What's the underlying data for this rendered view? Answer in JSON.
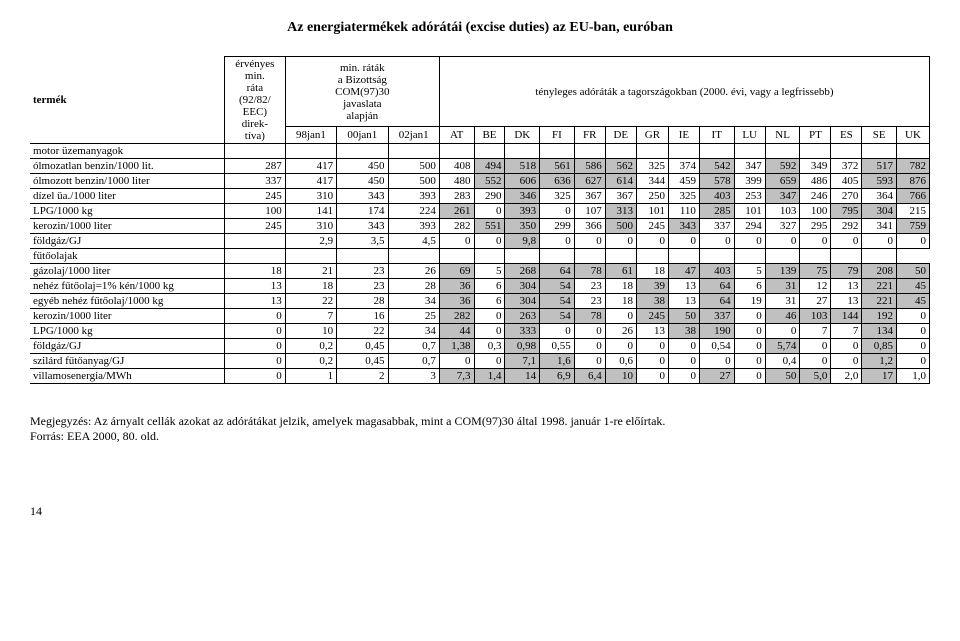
{
  "title": "Az energiatermékek adórátái (excise duties) az EU-ban, euróban",
  "header": {
    "col_product": "termék",
    "col_rate": "érvényes\nmin.\nráta\n(92/82/\nEEC)\ndirek-\ntíva)",
    "col_proposal": "min. ráták\na Bizottság\nCOM(97)30\njavaslata\nalapján",
    "col_actual": "tényleges adóráták a tagországokban (2000. évi, vagy a legfrissebb)",
    "dates": [
      "98jan1",
      "00jan1",
      "02jan1"
    ],
    "countries": [
      "AT",
      "BE",
      "DK",
      "FI",
      "FR",
      "DE",
      "GR",
      "IE",
      "IT",
      "LU",
      "NL",
      "PT",
      "ES",
      "SE",
      "UK"
    ]
  },
  "section_fuel": "motor üzemanyagok",
  "section_heating": "fűtőolajak",
  "rows_fuel": [
    {
      "label": "ólmozatlan benzin/1000 lit.",
      "rate": "287",
      "p": [
        "417",
        "450",
        "500"
      ],
      "v": [
        "408",
        "494",
        "518",
        "561",
        "586",
        "562",
        "325",
        "374",
        "542",
        "347",
        "592",
        "349",
        "372",
        "517",
        "782"
      ],
      "s": [
        0,
        1,
        1,
        1,
        1,
        1,
        0,
        0,
        1,
        0,
        1,
        0,
        0,
        1,
        1
      ]
    },
    {
      "label": "ólmozott benzin/1000 liter",
      "rate": "337",
      "p": [
        "417",
        "450",
        "500"
      ],
      "v": [
        "480",
        "552",
        "606",
        "636",
        "627",
        "614",
        "344",
        "459",
        "578",
        "399",
        "659",
        "486",
        "405",
        "593",
        "876"
      ],
      "s": [
        0,
        1,
        1,
        1,
        1,
        1,
        0,
        0,
        1,
        0,
        1,
        0,
        0,
        1,
        1
      ]
    },
    {
      "label": "dízel üa./1000 liter",
      "rate": "245",
      "p": [
        "310",
        "343",
        "393"
      ],
      "v": [
        "283",
        "290",
        "346",
        "325",
        "367",
        "367",
        "250",
        "325",
        "403",
        "253",
        "347",
        "246",
        "270",
        "364",
        "766"
      ],
      "s": [
        0,
        0,
        1,
        0,
        0,
        0,
        0,
        0,
        1,
        0,
        1,
        0,
        0,
        0,
        1
      ]
    },
    {
      "label": "LPG/1000 kg",
      "rate": "100",
      "p": [
        "141",
        "174",
        "224"
      ],
      "v": [
        "261",
        "0",
        "393",
        "0",
        "107",
        "313",
        "101",
        "110",
        "285",
        "101",
        "103",
        "100",
        "795",
        "304",
        "215"
      ],
      "s": [
        1,
        0,
        1,
        0,
        0,
        1,
        0,
        0,
        1,
        0,
        0,
        0,
        1,
        1,
        0
      ]
    },
    {
      "label": "kerozin/1000 liter",
      "rate": "245",
      "p": [
        "310",
        "343",
        "393"
      ],
      "v": [
        "282",
        "551",
        "350",
        "299",
        "366",
        "500",
        "245",
        "343",
        "337",
        "294",
        "327",
        "295",
        "292",
        "341",
        "759"
      ],
      "s": [
        0,
        1,
        1,
        0,
        0,
        1,
        0,
        1,
        0,
        0,
        0,
        0,
        0,
        0,
        1
      ]
    },
    {
      "label": "földgáz/GJ",
      "rate": "",
      "p": [
        "2,9",
        "3,5",
        "4,5"
      ],
      "v": [
        "0",
        "0",
        "9,8",
        "0",
        "0",
        "0",
        "0",
        "0",
        "0",
        "0",
        "0",
        "0",
        "0",
        "0",
        "0"
      ],
      "s": [
        0,
        0,
        1,
        0,
        0,
        0,
        0,
        0,
        0,
        0,
        0,
        0,
        0,
        0,
        0
      ]
    }
  ],
  "rows_heating": [
    {
      "label": "gázolaj/1000 liter",
      "rate": "18",
      "p": [
        "21",
        "23",
        "26"
      ],
      "v": [
        "69",
        "5",
        "268",
        "64",
        "78",
        "61",
        "18",
        "47",
        "403",
        "5",
        "139",
        "75",
        "79",
        "208",
        "50"
      ],
      "s": [
        1,
        0,
        1,
        1,
        1,
        1,
        0,
        1,
        1,
        0,
        1,
        1,
        1,
        1,
        1
      ]
    },
    {
      "label": "nehéz fűtőolaj=1% kén/1000 kg",
      "rate": "13",
      "p": [
        "18",
        "23",
        "28"
      ],
      "v": [
        "36",
        "6",
        "304",
        "54",
        "23",
        "18",
        "39",
        "13",
        "64",
        "6",
        "31",
        "12",
        "13",
        "221",
        "45"
      ],
      "s": [
        1,
        0,
        1,
        1,
        0,
        0,
        1,
        0,
        1,
        0,
        1,
        0,
        0,
        1,
        1
      ]
    },
    {
      "label": "egyéb nehéz fűtőolaj/1000 kg",
      "rate": "13",
      "p": [
        "22",
        "28",
        "34"
      ],
      "v": [
        "36",
        "6",
        "304",
        "54",
        "23",
        "18",
        "38",
        "13",
        "64",
        "19",
        "31",
        "27",
        "13",
        "221",
        "45"
      ],
      "s": [
        1,
        0,
        1,
        1,
        0,
        0,
        1,
        0,
        1,
        0,
        0,
        0,
        0,
        1,
        1
      ]
    },
    {
      "label": "kerozin/1000 liter",
      "rate": "0",
      "p": [
        "7",
        "16",
        "25"
      ],
      "v": [
        "282",
        "0",
        "263",
        "54",
        "78",
        "0",
        "245",
        "50",
        "337",
        "0",
        "46",
        "103",
        "144",
        "192",
        "0"
      ],
      "s": [
        1,
        0,
        1,
        1,
        1,
        0,
        1,
        1,
        1,
        0,
        1,
        1,
        1,
        1,
        0
      ]
    },
    {
      "label": "LPG/1000 kg",
      "rate": "0",
      "p": [
        "10",
        "22",
        "34"
      ],
      "v": [
        "44",
        "0",
        "333",
        "0",
        "0",
        "26",
        "13",
        "38",
        "190",
        "0",
        "0",
        "7",
        "7",
        "134",
        "0"
      ],
      "s": [
        1,
        0,
        1,
        0,
        0,
        0,
        0,
        1,
        1,
        0,
        0,
        0,
        0,
        1,
        0
      ]
    },
    {
      "label": "földgáz/GJ",
      "rate": "0",
      "p": [
        "0,2",
        "0,45",
        "0,7"
      ],
      "v": [
        "1,38",
        "0,3",
        "0,98",
        "0,55",
        "0",
        "0",
        "0",
        "0",
        "0,54",
        "0",
        "5,74",
        "0",
        "0",
        "0,85",
        "0"
      ],
      "s": [
        1,
        0,
        1,
        0,
        0,
        0,
        0,
        0,
        0,
        0,
        1,
        0,
        0,
        1,
        0
      ]
    },
    {
      "label": "szilárd fűtőanyag/GJ",
      "rate": "0",
      "p": [
        "0,2",
        "0,45",
        "0,7"
      ],
      "v": [
        "0",
        "0",
        "7,1",
        "1,6",
        "0",
        "0,6",
        "0",
        "0",
        "0",
        "0",
        "0,4",
        "0",
        "0",
        "1,2",
        "0"
      ],
      "s": [
        0,
        0,
        1,
        1,
        0,
        0,
        0,
        0,
        0,
        0,
        0,
        0,
        0,
        1,
        0
      ]
    },
    {
      "label": "villamosenergia/MWh",
      "rate": "0",
      "p": [
        "1",
        "2",
        "3"
      ],
      "v": [
        "7,3",
        "1,4",
        "14",
        "6,9",
        "6,4",
        "10",
        "0",
        "0",
        "27",
        "0",
        "50",
        "5,0",
        "2,0",
        "17",
        "1,0"
      ],
      "s": [
        1,
        1,
        1,
        1,
        1,
        1,
        0,
        0,
        1,
        0,
        1,
        1,
        0,
        1,
        0
      ]
    }
  ],
  "note1": "Megjegyzés: Az árnyalt cellák azokat az adórátákat jelzik, amelyek magasabbak, mint a COM(97)30 által 1998. január 1-re előírtak.",
  "note2": "Forrás: EEA 2000, 80. old.",
  "pagenum": "14"
}
